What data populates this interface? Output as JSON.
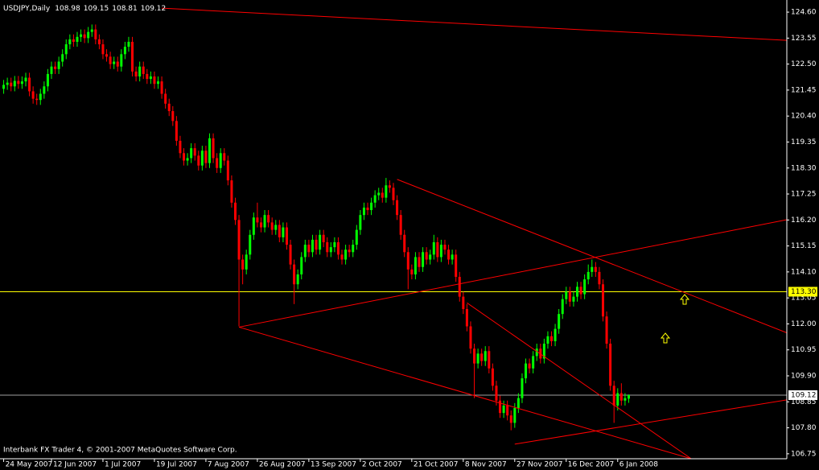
{
  "chart_data": {
    "type": "candlestick",
    "title": "USDJPY,Daily",
    "footer": "Interbank FX Trader 4, © 2001-2007 MetaQuotes Software Corp.",
    "open": [
      121.5,
      121.66,
      121.75,
      121.6,
      121.82,
      121.7,
      121.8,
      121.95,
      121.4,
      121.1,
      121.05,
      121.3,
      121.6,
      122.1,
      122.4,
      122.3,
      122.6,
      122.9,
      123.3,
      123.5,
      123.4,
      123.6,
      123.7,
      123.55,
      123.8,
      123.9,
      123.5,
      123.3,
      122.9,
      122.8,
      122.5,
      122.6,
      122.4,
      122.9,
      123.2,
      123.4,
      122.2,
      122.0,
      122.4,
      122.1,
      121.9,
      122.0,
      121.7,
      121.8,
      121.3,
      120.9,
      120.6,
      120.2,
      119.4,
      118.9,
      118.6,
      118.7,
      119.1,
      118.8,
      118.4,
      119.0,
      118.5,
      119.5,
      118.7,
      118.3,
      118.9,
      118.6,
      117.8,
      116.9,
      116.2,
      114.6,
      114.2,
      114.8,
      115.6,
      116.3,
      116.1,
      115.9,
      116.4,
      116.1,
      115.8,
      116.0,
      115.5,
      115.9,
      115.2,
      114.4,
      113.6,
      114.0,
      114.7,
      115.2,
      114.9,
      115.4,
      115.0,
      115.6,
      115.3,
      114.9,
      115.1,
      115.3,
      114.8,
      114.6,
      115.0,
      114.9,
      115.2,
      115.8,
      116.4,
      116.7,
      116.6,
      116.9,
      117.2,
      117.3,
      117.1,
      117.6,
      117.5,
      117.0,
      116.4,
      115.6,
      114.9,
      114.2,
      114.0,
      114.7,
      114.3,
      114.9,
      114.6,
      114.8,
      115.3,
      114.7,
      115.2,
      115.0,
      114.6,
      114.8,
      113.9,
      113.1,
      112.6,
      111.9,
      111.0,
      110.4,
      110.8,
      110.5,
      110.9,
      110.2,
      109.5,
      108.9,
      108.4,
      108.7,
      108.3,
      108.0,
      108.6,
      109.0,
      109.8,
      110.4,
      110.2,
      110.7,
      111.0,
      110.6,
      111.2,
      111.5,
      111.3,
      111.8,
      112.4,
      113.0,
      113.3,
      112.9,
      113.1,
      113.5,
      113.2,
      113.8,
      114.1,
      114.3,
      114.1,
      113.6,
      112.3,
      111.2,
      109.5,
      108.7,
      109.2,
      108.9,
      108.98
    ],
    "high": [
      121.86,
      121.95,
      121.95,
      122.02,
      122.02,
      122.0,
      122.15,
      122.15,
      121.6,
      121.3,
      121.5,
      121.8,
      122.3,
      122.6,
      122.6,
      122.8,
      123.1,
      123.5,
      123.7,
      123.7,
      123.8,
      123.9,
      123.9,
      124.0,
      124.1,
      124.1,
      123.7,
      123.5,
      123.1,
      123.0,
      122.8,
      122.8,
      123.1,
      123.4,
      123.6,
      123.6,
      122.4,
      122.6,
      122.6,
      122.3,
      122.2,
      122.2,
      122.0,
      122.0,
      121.5,
      121.1,
      120.8,
      120.4,
      119.6,
      119.1,
      118.9,
      119.3,
      119.3,
      119.0,
      119.2,
      119.2,
      119.7,
      119.7,
      118.9,
      119.1,
      119.1,
      118.8,
      118.0,
      117.1,
      116.4,
      114.8,
      115.0,
      115.8,
      116.5,
      116.9,
      116.3,
      116.6,
      116.6,
      116.3,
      116.2,
      116.2,
      116.1,
      116.1,
      115.4,
      114.6,
      114.2,
      114.9,
      115.4,
      115.4,
      115.6,
      115.6,
      115.8,
      115.8,
      115.5,
      115.3,
      115.5,
      115.5,
      115.0,
      115.2,
      115.2,
      115.4,
      116.0,
      116.6,
      116.9,
      116.9,
      117.1,
      117.4,
      117.5,
      117.5,
      117.9,
      117.8,
      117.7,
      117.2,
      116.6,
      115.8,
      115.1,
      114.4,
      114.9,
      114.9,
      115.1,
      115.1,
      115.0,
      115.6,
      115.5,
      115.4,
      115.4,
      115.2,
      115.0,
      115.0,
      114.1,
      113.3,
      112.8,
      112.1,
      111.2,
      111.0,
      111.0,
      111.1,
      111.1,
      110.4,
      109.7,
      109.1,
      108.9,
      108.9,
      108.5,
      108.8,
      109.2,
      110.0,
      110.6,
      110.6,
      110.9,
      111.2,
      111.2,
      111.4,
      111.7,
      111.7,
      112.0,
      112.6,
      113.2,
      113.5,
      113.5,
      113.3,
      113.7,
      113.7,
      114.0,
      114.4,
      114.6,
      114.5,
      114.3,
      113.8,
      112.5,
      111.4,
      109.7,
      109.4,
      109.6,
      109.2,
      109.15
    ],
    "low": [
      121.3,
      121.46,
      121.4,
      121.4,
      121.5,
      121.5,
      121.6,
      121.2,
      120.9,
      120.85,
      120.85,
      121.1,
      121.4,
      121.9,
      122.1,
      122.1,
      122.4,
      122.7,
      123.1,
      123.2,
      123.2,
      123.4,
      123.35,
      123.35,
      123.6,
      123.3,
      123.1,
      122.7,
      122.6,
      122.3,
      122.3,
      122.2,
      122.2,
      122.7,
      123.0,
      122.0,
      121.8,
      121.8,
      121.9,
      121.7,
      121.7,
      121.5,
      121.5,
      121.1,
      120.7,
      120.4,
      120.0,
      119.2,
      118.7,
      118.4,
      118.4,
      118.5,
      118.6,
      118.2,
      118.2,
      118.3,
      118.3,
      118.5,
      118.1,
      118.1,
      118.4,
      117.6,
      116.7,
      116.0,
      111.9,
      113.6,
      114.0,
      114.6,
      115.4,
      115.9,
      115.7,
      115.7,
      115.9,
      115.6,
      115.6,
      115.3,
      115.3,
      115.0,
      114.2,
      112.8,
      113.4,
      113.8,
      114.5,
      114.7,
      114.7,
      114.8,
      114.8,
      115.1,
      114.7,
      114.7,
      114.9,
      114.6,
      114.4,
      114.4,
      114.7,
      114.7,
      115.0,
      115.6,
      116.2,
      116.4,
      116.4,
      116.7,
      117.0,
      116.9,
      116.9,
      117.3,
      116.8,
      116.2,
      115.4,
      114.7,
      113.4,
      113.8,
      113.8,
      114.1,
      114.1,
      114.4,
      114.4,
      114.6,
      114.5,
      114.5,
      114.8,
      114.4,
      114.4,
      113.7,
      112.9,
      112.4,
      111.7,
      110.8,
      109.0,
      110.2,
      110.3,
      110.3,
      110.0,
      109.3,
      108.7,
      108.2,
      108.2,
      108.1,
      107.7,
      107.8,
      108.4,
      108.8,
      109.6,
      110.0,
      110.0,
      110.5,
      110.4,
      110.4,
      111.0,
      111.1,
      111.1,
      111.6,
      112.2,
      112.8,
      112.7,
      112.7,
      112.9,
      113.0,
      113.0,
      113.6,
      113.9,
      113.9,
      113.4,
      112.1,
      111.0,
      109.3,
      108.0,
      108.5,
      108.7,
      108.7,
      108.81
    ],
    "close": [
      121.66,
      121.75,
      121.6,
      121.82,
      121.7,
      121.8,
      121.95,
      121.4,
      121.1,
      121.05,
      121.3,
      121.6,
      122.1,
      122.4,
      122.3,
      122.6,
      122.9,
      123.3,
      123.5,
      123.4,
      123.6,
      123.7,
      123.55,
      123.8,
      123.9,
      123.5,
      123.3,
      122.9,
      122.8,
      122.5,
      122.6,
      122.4,
      122.9,
      123.2,
      123.4,
      122.2,
      122.0,
      122.4,
      122.1,
      121.9,
      122.0,
      121.7,
      121.8,
      121.3,
      120.9,
      120.6,
      120.2,
      119.4,
      118.9,
      118.6,
      118.7,
      119.1,
      118.8,
      118.4,
      119.0,
      118.5,
      119.5,
      118.7,
      118.3,
      118.9,
      118.6,
      117.8,
      116.9,
      116.2,
      114.6,
      114.2,
      114.8,
      115.6,
      116.3,
      116.1,
      115.9,
      116.4,
      116.1,
      115.8,
      116.0,
      115.5,
      115.9,
      115.2,
      114.4,
      113.6,
      114.0,
      114.7,
      115.2,
      114.9,
      115.4,
      115.0,
      115.6,
      115.3,
      114.9,
      115.1,
      115.3,
      114.8,
      114.6,
      115.0,
      114.9,
      115.2,
      115.8,
      116.4,
      116.7,
      116.6,
      116.9,
      117.2,
      117.3,
      117.1,
      117.6,
      117.5,
      117.0,
      116.4,
      115.6,
      114.9,
      114.2,
      114.0,
      114.7,
      114.3,
      114.9,
      114.6,
      114.8,
      115.3,
      114.7,
      115.2,
      115.0,
      114.6,
      114.8,
      113.9,
      113.1,
      112.6,
      111.9,
      111.0,
      110.4,
      110.8,
      110.5,
      110.9,
      110.2,
      109.5,
      108.9,
      108.4,
      108.7,
      108.3,
      108.0,
      108.6,
      109.0,
      109.8,
      110.4,
      110.2,
      110.7,
      111.0,
      110.6,
      111.2,
      111.5,
      111.3,
      111.8,
      112.4,
      113.0,
      113.3,
      112.9,
      113.1,
      113.5,
      113.2,
      113.8,
      114.1,
      114.3,
      114.1,
      113.6,
      112.3,
      111.2,
      109.5,
      108.7,
      109.2,
      108.9,
      109.0,
      109.12
    ],
    "xlim": [
      -1,
      213
    ],
    "ylim": [
      106.55,
      125.09
    ],
    "xticks": [
      {
        "value": 0,
        "label": "24 May 2007"
      },
      {
        "value": 13,
        "label": "12 Jun 2007"
      },
      {
        "value": 27,
        "label": "1 Jul 2007"
      },
      {
        "value": 41,
        "label": "19 Jul 2007"
      },
      {
        "value": 55,
        "label": "7 Aug 2007"
      },
      {
        "value": 69,
        "label": "26 Aug 2007"
      },
      {
        "value": 83,
        "label": "13 Sep 2007"
      },
      {
        "value": 97,
        "label": "2 Oct 2007"
      },
      {
        "value": 111,
        "label": "21 Oct 2007"
      },
      {
        "value": 125,
        "label": "8 Nov 2007"
      },
      {
        "value": 139,
        "label": "27 Nov 2007"
      },
      {
        "value": 153,
        "label": "16 Dec 2007"
      },
      {
        "value": 167,
        "label": "6 Jan 2008"
      }
    ],
    "yticks": [
      {
        "value": 124.6,
        "label": "124.60"
      },
      123.55,
      {
        "value": 122.5,
        "label": "122.50"
      },
      121.45,
      {
        "value": 120.4,
        "label": "120.40"
      },
      119.35,
      {
        "value": 118.3,
        "label": "118.30"
      },
      117.25,
      {
        "value": 116.2,
        "label": "116.20"
      },
      115.15,
      {
        "value": 114.1,
        "label": "114.10"
      },
      113.05,
      {
        "value": 112,
        "label": "112.00"
      },
      110.95,
      {
        "value": 109.9,
        "label": "109.90"
      },
      108.85,
      {
        "value": 107.8,
        "label": "107.80"
      },
      106.75
    ],
    "level": {
      "value": 113.3,
      "label": "113.30",
      "color": "#ffff00"
    },
    "trendlines": [
      {
        "x": [
          43,
          213
        ],
        "y": [
          124.76,
          123.46
        ]
      },
      {
        "x": [
          107,
          213
        ],
        "y": [
          117.84,
          111.64
        ]
      },
      {
        "x": [
          64,
          213
        ],
        "y": [
          111.87,
          116.21
        ]
      },
      {
        "x": [
          64,
          187
        ],
        "y": [
          111.87,
          106.55
        ]
      },
      {
        "x": [
          126,
          187
        ],
        "y": [
          112.85,
          106.55
        ]
      },
      {
        "x": [
          139,
          213
        ],
        "y": [
          107.14,
          108.93
        ]
      }
    ],
    "bull_color": "#00ff00",
    "bear_color": "#ff0000",
    "line_color": "#ff0000",
    "bid_color": "#a0a0a0"
  }
}
